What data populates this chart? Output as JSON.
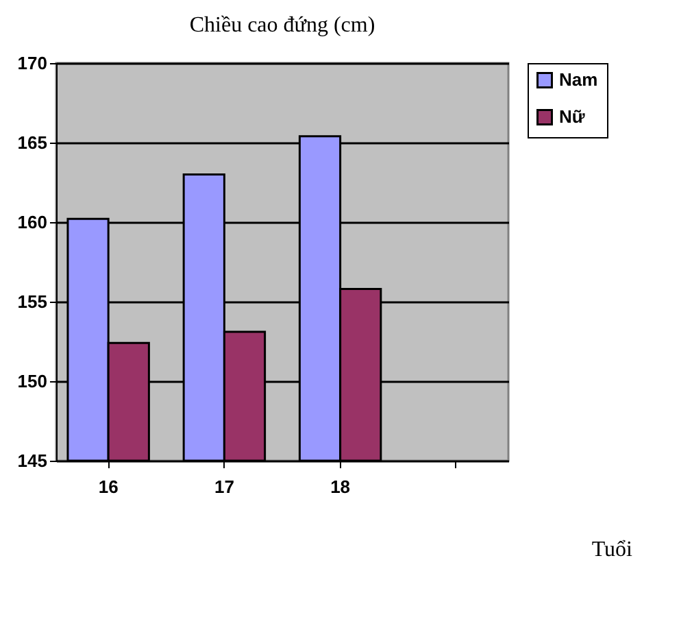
{
  "chart_data": {
    "type": "bar",
    "title": "Chiều cao đứng (cm)",
    "xlabel": "Tuổi",
    "categories": [
      "16",
      "17",
      "18",
      null
    ],
    "series": [
      {
        "name": "Nam",
        "color": "#9999ff",
        "values": [
          160.2,
          163,
          165.4,
          null
        ]
      },
      {
        "name": "Nữ",
        "color": "#993366",
        "values": [
          152.4,
          153.1,
          155.8,
          null
        ]
      }
    ],
    "ylim": [
      145,
      170
    ],
    "yticks": [
      145,
      150,
      155,
      160,
      165,
      170
    ],
    "grid": "y",
    "legend": "right"
  }
}
